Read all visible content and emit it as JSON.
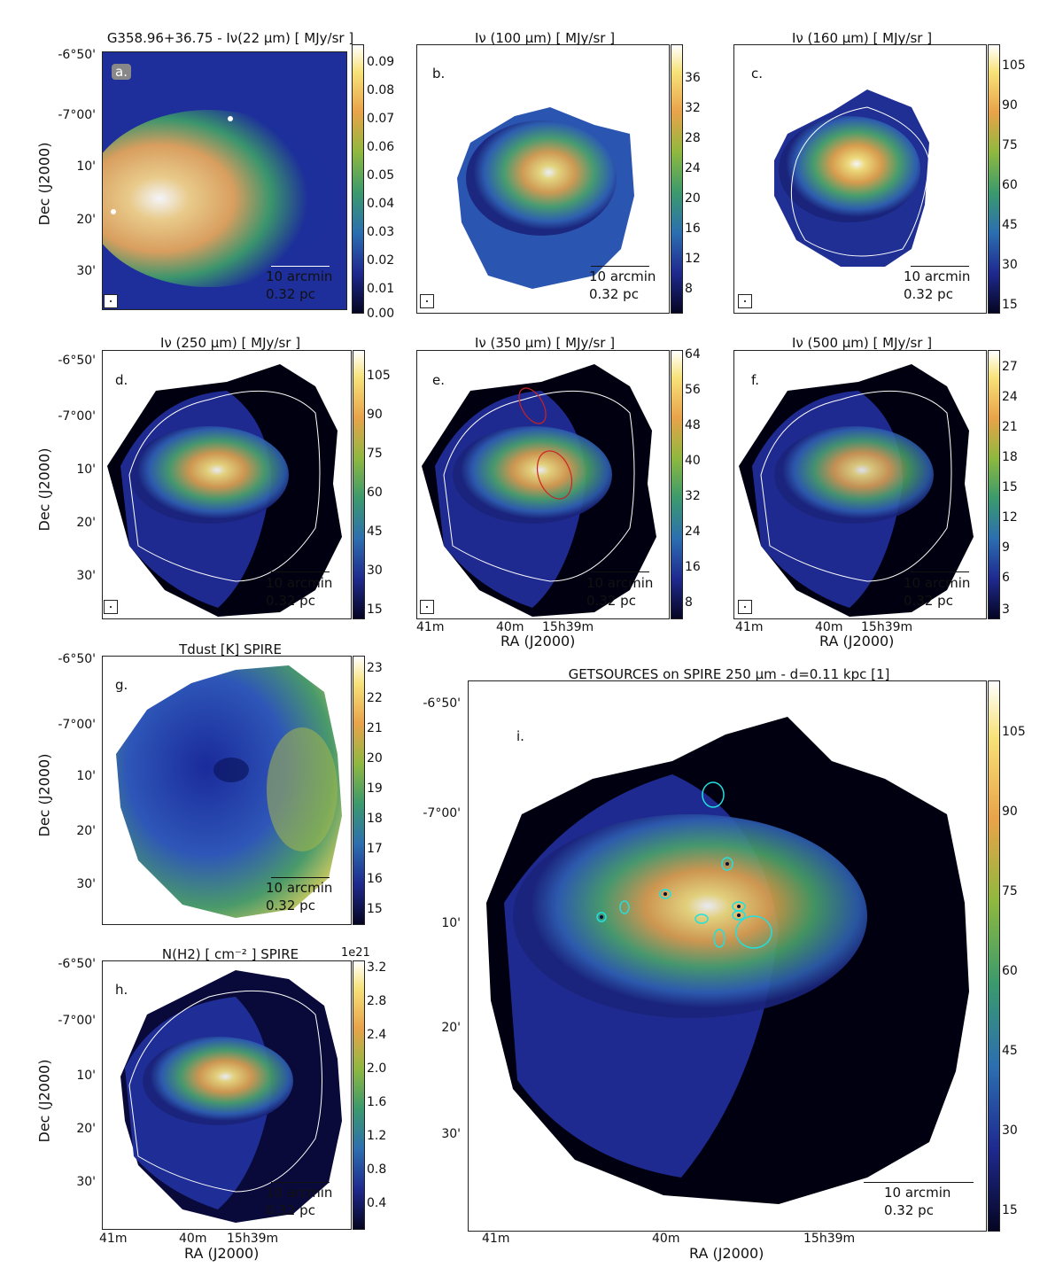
{
  "panels": {
    "a": {
      "title": "G358.96+36.75 - Iν(22 μm)  [ MJy/sr ]",
      "letter": "a.",
      "cbar_ticks": [
        "0.09",
        "0.08",
        "0.07",
        "0.06",
        "0.05",
        "0.04",
        "0.03",
        "0.02",
        "0.01",
        "0.00"
      ]
    },
    "b": {
      "title": "Iν (100 μm) [ MJy/sr ]",
      "letter": "b.",
      "cbar_ticks": [
        "36",
        "32",
        "28",
        "24",
        "20",
        "16",
        "12",
        "8"
      ]
    },
    "c": {
      "title": "Iν (160 μm) [ MJy/sr ]",
      "letter": "c.",
      "cbar_ticks": [
        "105",
        "90",
        "75",
        "60",
        "45",
        "30",
        "15"
      ]
    },
    "d": {
      "title": "Iν (250 μm) [ MJy/sr ]",
      "letter": "d.",
      "cbar_ticks": [
        "105",
        "90",
        "75",
        "60",
        "45",
        "30",
        "15"
      ]
    },
    "e": {
      "title": "Iν (350 μm) [ MJy/sr ]",
      "letter": "e.",
      "cbar_ticks": [
        "64",
        "56",
        "48",
        "40",
        "32",
        "24",
        "16",
        "8"
      ]
    },
    "f": {
      "title": "Iν (500 μm) [ MJy/sr ]",
      "letter": "f.",
      "cbar_ticks": [
        "27",
        "24",
        "21",
        "18",
        "15",
        "12",
        "9",
        "6",
        "3"
      ]
    },
    "g": {
      "title": "Tdust [K] SPIRE",
      "letter": "g.",
      "cbar_ticks": [
        "23",
        "22",
        "21",
        "20",
        "19",
        "18",
        "17",
        "16",
        "15"
      ]
    },
    "h": {
      "title": "N(H2) [ cm⁻² ] SPIRE",
      "letter": "h.",
      "cbar_ticks": [
        "3.2",
        "2.8",
        "2.4",
        "2.0",
        "1.6",
        "1.2",
        "0.8",
        "0.4"
      ],
      "cbar_exp": "1e21"
    },
    "i": {
      "title": "GETSOURCES on SPIRE 250 μm  -  d=0.11 kpc [1]",
      "letter": "i.",
      "cbar_ticks": [
        "105",
        "90",
        "75",
        "60",
        "45",
        "30",
        "15"
      ]
    }
  },
  "axes": {
    "dec_label": "Dec (J2000)",
    "ra_label": "RA (J2000)",
    "dec_ticks": [
      "-6°50'",
      "-7°00'",
      "10'",
      "20'",
      "30'"
    ],
    "ra_ticks": [
      "41m",
      "40m",
      "15h39m"
    ]
  },
  "scale": {
    "arcmin": "10 arcmin",
    "pc": "0.32 pc"
  },
  "colors": {
    "low": "#0b0b3a",
    "mid": "#2a8a5a",
    "high": "#f7c65a",
    "peak": "#ffffff",
    "ellipse_red": "#cc2222",
    "ellipse_cyan": "#22e0e0",
    "contour": "#ffffff"
  }
}
